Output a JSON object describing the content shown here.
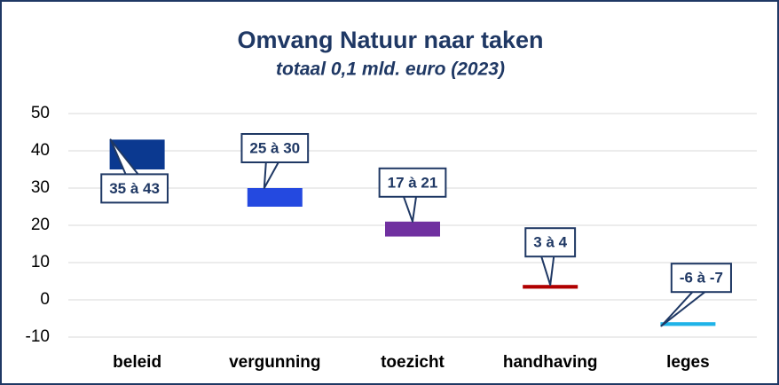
{
  "chart_data": {
    "type": "floating-bar",
    "title": "Omvang Natuur naar taken",
    "subtitle": "totaal 0,1 mld. euro (2023)",
    "categories": [
      "beleid",
      "vergunning",
      "toezicht",
      "handhaving",
      "leges"
    ],
    "from": [
      35,
      25,
      17,
      3,
      -6
    ],
    "to": [
      43,
      30,
      21,
      4,
      -7
    ],
    "value_labels": [
      "35 à 43",
      "25 à 30",
      "17 à 21",
      "3 à 4",
      "-6 à -7"
    ],
    "colors": [
      "#0b3990",
      "#2449e0",
      "#7030a0",
      "#b00000",
      "#1fb3e8"
    ],
    "ylim": [
      -10,
      50
    ],
    "yticks": [
      -10,
      0,
      10,
      20,
      30,
      40,
      50
    ],
    "grid": true
  }
}
